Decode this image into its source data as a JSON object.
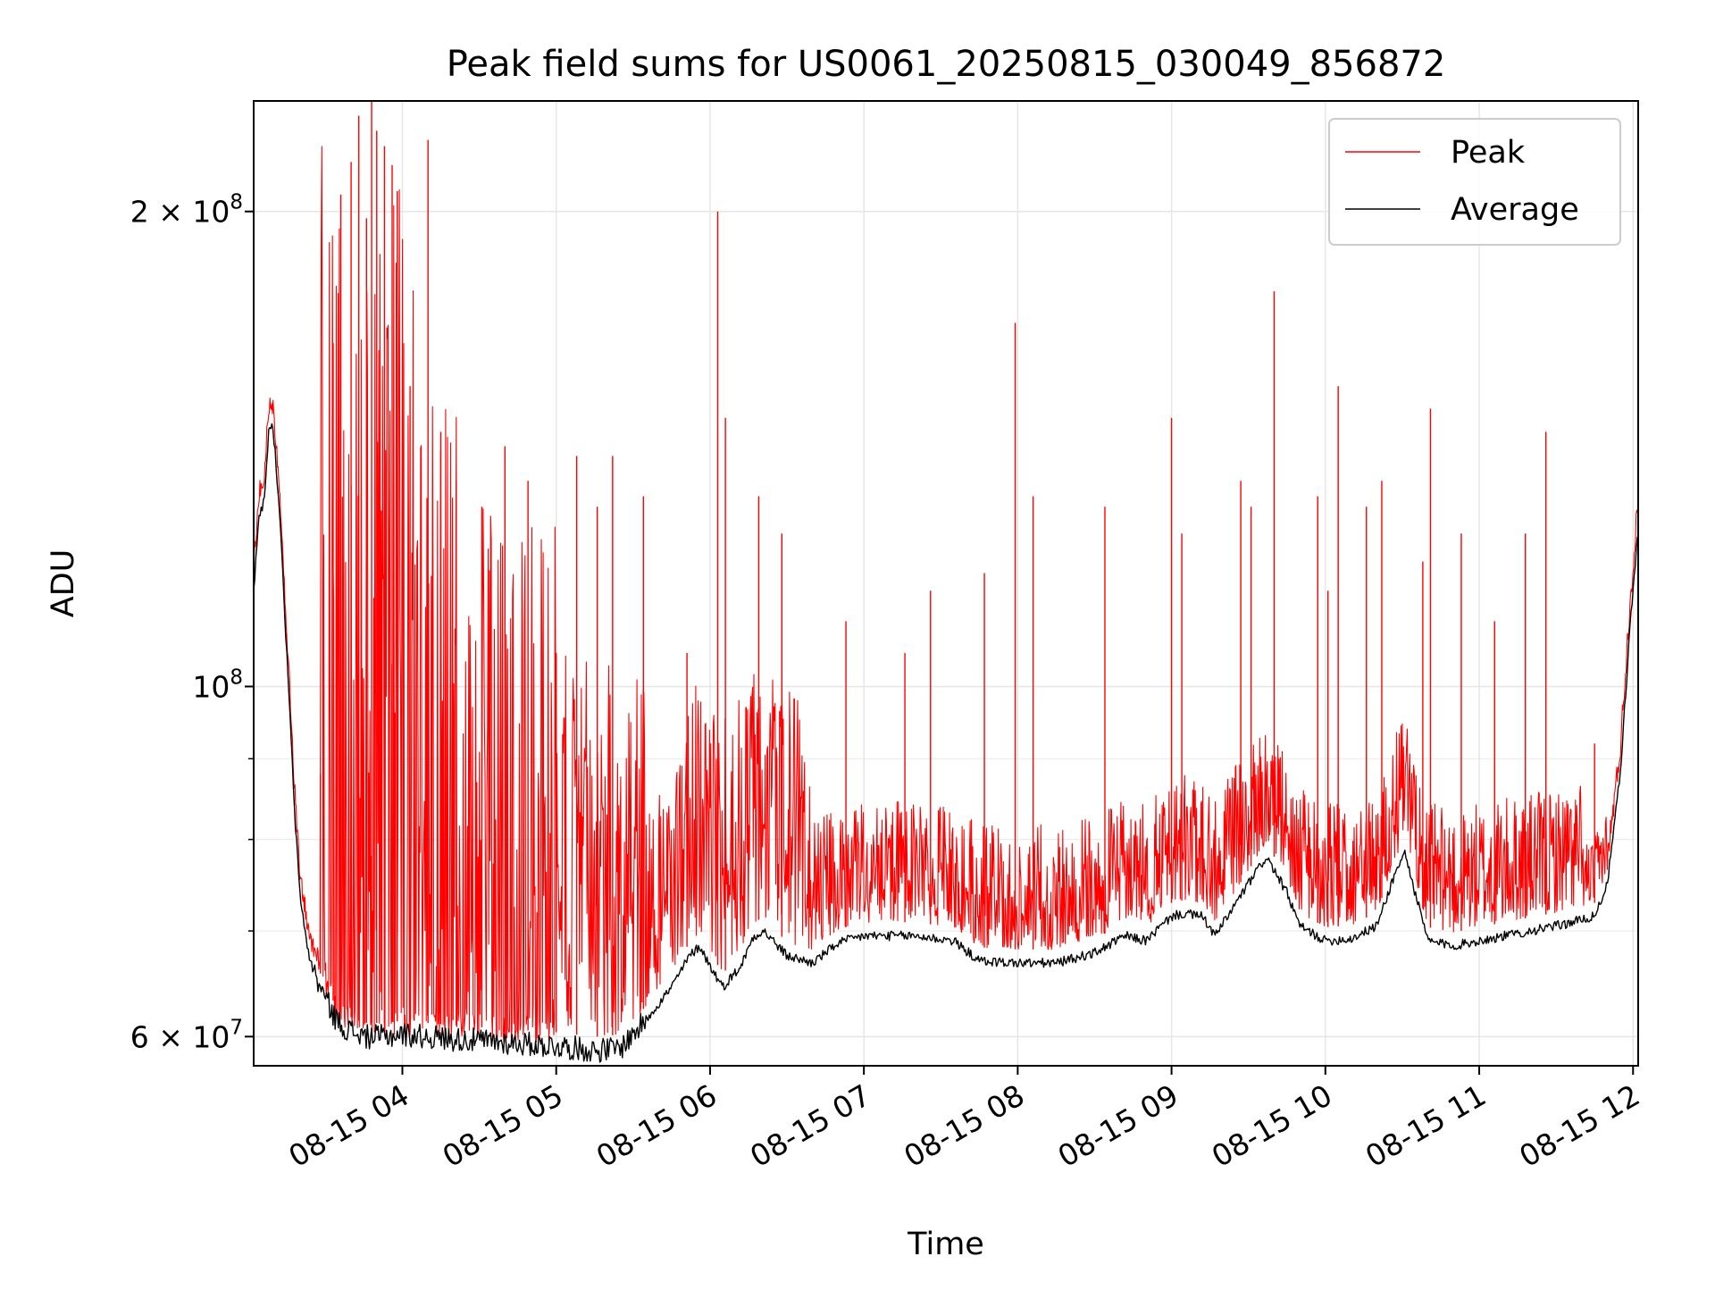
{
  "chart_data": {
    "type": "line",
    "title": "Peak field sums for US0061_20250815_030049_856872",
    "xlabel": "Time",
    "ylabel": "ADU",
    "x_range": [
      "2025-08-15 03:02",
      "2025-08-15 12:02"
    ],
    "ylim": [
      57500000,
      235000000
    ],
    "y_scale": "log",
    "grid": true,
    "legend_position": "upper-right",
    "x_ticks": [
      "08-15 04",
      "08-15 05",
      "08-15 06",
      "08-15 07",
      "08-15 08",
      "08-15 09",
      "08-15 10",
      "08-15 11",
      "08-15 12"
    ],
    "y_ticks": [
      {
        "value": 60000000,
        "mantissa": "6",
        "exponent": "7"
      },
      {
        "value": 100000000,
        "mantissa": "",
        "exponent": "8"
      },
      {
        "value": 200000000,
        "mantissa": "2",
        "exponent": "8"
      }
    ],
    "series": [
      {
        "name": "Peak",
        "color": "#ff0000",
        "baseline_offset": 1.02,
        "x": [
          "2025-08-15 03:28",
          "2025-08-15 03:33",
          "2025-08-15 03:36",
          "2025-08-15 03:40",
          "2025-08-15 03:43",
          "2025-08-15 03:46",
          "2025-08-15 03:48",
          "2025-08-15 03:50",
          "2025-08-15 03:53",
          "2025-08-15 03:56",
          "2025-08-15 03:58",
          "2025-08-15 04:03",
          "2025-08-15 04:10",
          "2025-08-15 04:15",
          "2025-08-15 04:21",
          "2025-08-15 04:31",
          "2025-08-15 04:40",
          "2025-08-15 04:49",
          "2025-08-15 05:00",
          "2025-08-15 05:08",
          "2025-08-15 05:16",
          "2025-08-15 05:22",
          "2025-08-15 05:34",
          "2025-08-15 05:51",
          "2025-08-15 06:03",
          "2025-08-15 06:06",
          "2025-08-15 06:19",
          "2025-08-15 06:28",
          "2025-08-15 06:53",
          "2025-08-15 07:16",
          "2025-08-15 07:26",
          "2025-08-15 07:47",
          "2025-08-15 07:59",
          "2025-08-15 08:06",
          "2025-08-15 08:34",
          "2025-08-15 09:00",
          "2025-08-15 09:04",
          "2025-08-15 09:27",
          "2025-08-15 09:31",
          "2025-08-15 09:40",
          "2025-08-15 09:57",
          "2025-08-15 10:01",
          "2025-08-15 10:05",
          "2025-08-15 10:16",
          "2025-08-15 10:22",
          "2025-08-15 10:38",
          "2025-08-15 10:41",
          "2025-08-15 10:53",
          "2025-08-15 11:06",
          "2025-08-15 11:18",
          "2025-08-15 11:26",
          "2025-08-15 11:45"
        ],
        "y": [
          88000000,
          165000000,
          205000000,
          215000000,
          230000000,
          198000000,
          235000000,
          225000000,
          220000000,
          214000000,
          206000000,
          155000000,
          222000000,
          145000000,
          135000000,
          130000000,
          142000000,
          135000000,
          105000000,
          140000000,
          130000000,
          140000000,
          132000000,
          105000000,
          200000000,
          148000000,
          132000000,
          125000000,
          110000000,
          105000000,
          115000000,
          118000000,
          170000000,
          132000000,
          130000000,
          148000000,
          125000000,
          135000000,
          130000000,
          178000000,
          132000000,
          115000000,
          155000000,
          130000000,
          135000000,
          120000000,
          150000000,
          125000000,
          110000000,
          125000000,
          145000000,
          92000000
        ]
      },
      {
        "name": "Average",
        "color": "#000000",
        "x": [
          "2025-08-15 03:02",
          "2025-08-15 03:04",
          "2025-08-15 03:06",
          "2025-08-15 03:08",
          "2025-08-15 03:09",
          "2025-08-15 03:10",
          "2025-08-15 03:12",
          "2025-08-15 03:14",
          "2025-08-15 03:16",
          "2025-08-15 03:18",
          "2025-08-15 03:20",
          "2025-08-15 03:22",
          "2025-08-15 03:24",
          "2025-08-15 03:27",
          "2025-08-15 03:30",
          "2025-08-15 03:33",
          "2025-08-15 03:36",
          "2025-08-15 03:40",
          "2025-08-15 03:45",
          "2025-08-15 03:52",
          "2025-08-15 04:00",
          "2025-08-15 04:20",
          "2025-08-15 04:40",
          "2025-08-15 05:00",
          "2025-08-15 05:15",
          "2025-08-15 05:25",
          "2025-08-15 05:35",
          "2025-08-15 05:45",
          "2025-08-15 05:52",
          "2025-08-15 05:56",
          "2025-08-15 06:00",
          "2025-08-15 06:05",
          "2025-08-15 06:12",
          "2025-08-15 06:17",
          "2025-08-15 06:21",
          "2025-08-15 06:30",
          "2025-08-15 06:40",
          "2025-08-15 06:50",
          "2025-08-15 07:00",
          "2025-08-15 07:20",
          "2025-08-15 07:35",
          "2025-08-15 07:45",
          "2025-08-15 08:00",
          "2025-08-15 08:15",
          "2025-08-15 08:30",
          "2025-08-15 08:42",
          "2025-08-15 08:50",
          "2025-08-15 09:00",
          "2025-08-15 09:05",
          "2025-08-15 09:12",
          "2025-08-15 09:17",
          "2025-08-15 09:30",
          "2025-08-15 09:37",
          "2025-08-15 09:45",
          "2025-08-15 09:50",
          "2025-08-15 10:00",
          "2025-08-15 10:10",
          "2025-08-15 10:20",
          "2025-08-15 10:27",
          "2025-08-15 10:31",
          "2025-08-15 10:35",
          "2025-08-15 10:40",
          "2025-08-15 10:50",
          "2025-08-15 11:10",
          "2025-08-15 11:30",
          "2025-08-15 11:45",
          "2025-08-15 11:50",
          "2025-08-15 11:55",
          "2025-08-15 11:59",
          "2025-08-15 12:02"
        ],
        "y": [
          115000000,
          128000000,
          131000000,
          146000000,
          147000000,
          143000000,
          130000000,
          112000000,
          97000000,
          83000000,
          74000000,
          70000000,
          67000000,
          65000000,
          63500000,
          62000000,
          61000000,
          60500000,
          60000000,
          60000000,
          60200000,
          59800000,
          59500000,
          59200000,
          58800000,
          59000000,
          61500000,
          64500000,
          67500000,
          68500000,
          66500000,
          64500000,
          66500000,
          69500000,
          70000000,
          67500000,
          66800000,
          68800000,
          69500000,
          69500000,
          69000000,
          67000000,
          66800000,
          66800000,
          67800000,
          69500000,
          69000000,
          71500000,
          71800000,
          71500000,
          69500000,
          75000000,
          78000000,
          74000000,
          70500000,
          69000000,
          69200000,
          70500000,
          76000000,
          78500000,
          74000000,
          69000000,
          68500000,
          69500000,
          70500000,
          71500000,
          75000000,
          88000000,
          110000000,
          126000000
        ]
      }
    ]
  }
}
